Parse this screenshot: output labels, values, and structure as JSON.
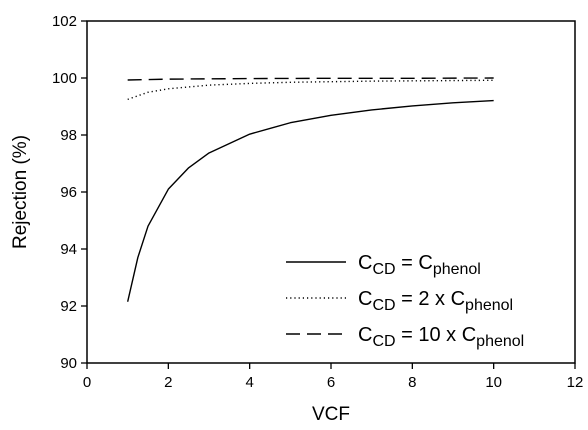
{
  "chart_data": {
    "type": "line",
    "xlabel": "VCF",
    "ylabel": "Rejection (%)",
    "xlim": [
      0,
      12
    ],
    "ylim": [
      90,
      102
    ],
    "xticks": [
      0,
      2,
      4,
      6,
      8,
      10,
      12
    ],
    "yticks": [
      90,
      92,
      94,
      96,
      98,
      100,
      102
    ],
    "xtick_labels": [
      "0",
      "2",
      "4",
      "6",
      "8",
      "10",
      "12"
    ],
    "ytick_labels": [
      "90",
      "92",
      "94",
      "96",
      "98",
      "100",
      "102"
    ],
    "grid": false,
    "legend_position": "lower-right",
    "series": [
      {
        "legend": {
          "lead": "C",
          "sub1": "CD",
          "mid": " = C",
          "sub2": "phenol",
          "tail": ""
        },
        "dash": "solid",
        "x": [
          1,
          1.25,
          1.5,
          2,
          2.5,
          3,
          4,
          5,
          6,
          7,
          8,
          9,
          10
        ],
        "y": [
          92.15,
          93.7,
          94.8,
          96.1,
          96.85,
          97.37,
          98.03,
          98.43,
          98.69,
          98.88,
          99.02,
          99.13,
          99.21
        ]
      },
      {
        "legend": {
          "lead": "C",
          "sub1": "CD",
          "mid": " = 2 x C",
          "sub2": "phenol",
          "tail": ""
        },
        "dash": "dotted",
        "x": [
          1,
          1.5,
          2,
          3,
          4,
          5,
          6,
          7,
          8,
          9,
          10
        ],
        "y": [
          99.25,
          99.5,
          99.62,
          99.75,
          99.81,
          99.85,
          99.87,
          99.89,
          99.9,
          99.91,
          99.92
        ]
      },
      {
        "legend": {
          "lead": "C",
          "sub1": "CD",
          "mid": " = 10 x C",
          "sub2": "phenol",
          "tail": ""
        },
        "dash": "dashed",
        "x": [
          1,
          2,
          4,
          6,
          8,
          10
        ],
        "y": [
          99.93,
          99.96,
          99.98,
          99.99,
          99.99,
          100.0
        ]
      }
    ]
  }
}
